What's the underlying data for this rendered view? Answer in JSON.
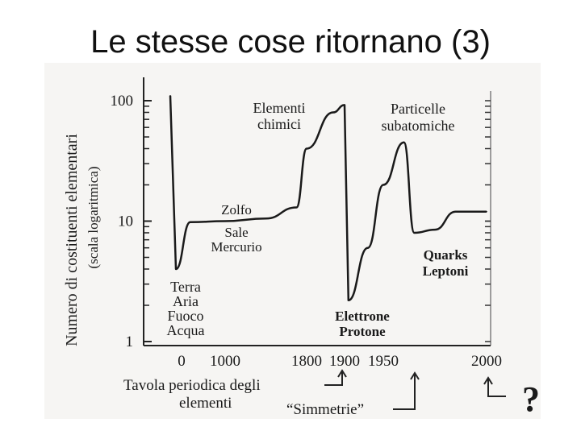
{
  "slide": {
    "title": "Le stesse cose ritornano (3)"
  },
  "chart_data": {
    "type": "line",
    "title": "",
    "ylabel_line1": "Numero di costituenti elementari",
    "ylabel_line2": "(scala logaritmica)",
    "y_scale": "log",
    "ylim": [
      1,
      120
    ],
    "y_ticks": [
      {
        "value": 1,
        "label": "1"
      },
      {
        "value": 10,
        "label": "10"
      },
      {
        "value": 100,
        "label": "100"
      }
    ],
    "x_ticks": [
      {
        "value": 0,
        "label": "0"
      },
      {
        "value": 1000,
        "label": "1000"
      },
      {
        "value": 1800,
        "label": "1800"
      },
      {
        "value": 1900,
        "label": "1900"
      },
      {
        "value": 1950,
        "label": "1950"
      },
      {
        "value": 2000,
        "label": "2000"
      }
    ],
    "x_scale": "non-uniform (historical)",
    "grid": false,
    "series": [
      {
        "values_description": "number of elementary constituents over history",
        "points": [
          {
            "x": -100,
            "y": 110
          },
          {
            "x": -50,
            "y": 4.0
          },
          {
            "x": 200,
            "y": 9.8
          },
          {
            "x": 1000,
            "y": 10
          },
          {
            "x": 1400,
            "y": 10.5
          },
          {
            "x": 1700,
            "y": 13
          },
          {
            "x": 1800,
            "y": 40
          },
          {
            "x": 1870,
            "y": 80
          },
          {
            "x": 1900,
            "y": 92
          },
          {
            "x": 1905,
            "y": 2.2
          },
          {
            "x": 1930,
            "y": 6
          },
          {
            "x": 1950,
            "y": 20
          },
          {
            "x": 1960,
            "y": 45
          },
          {
            "x": 1965,
            "y": 8
          },
          {
            "x": 1975,
            "y": 8.5
          },
          {
            "x": 1985,
            "y": 12
          },
          {
            "x": 2000,
            "y": 12
          }
        ]
      }
    ],
    "annotations": [
      {
        "id": "terra",
        "lines": [
          "Terra",
          "Aria",
          "Fuoco",
          "Acqua"
        ]
      },
      {
        "id": "zolfo",
        "lines": [
          "Zolfo",
          "Sale",
          "Mercurio"
        ]
      },
      {
        "id": "elementi",
        "lines": [
          "Elementi",
          "chimici"
        ]
      },
      {
        "id": "particelle",
        "lines": [
          "Particelle",
          "subatomiche"
        ]
      },
      {
        "id": "elettrone",
        "lines": [
          "Elettrone",
          "Protone"
        ]
      },
      {
        "id": "quarks",
        "lines": [
          "Quarks",
          "Leptoni"
        ]
      }
    ],
    "footnotes": {
      "tavola_line1": "Tavola periodica degli",
      "tavola_line2": "elementi",
      "simmetrie": "“Simmetrie”",
      "question": "?"
    }
  }
}
